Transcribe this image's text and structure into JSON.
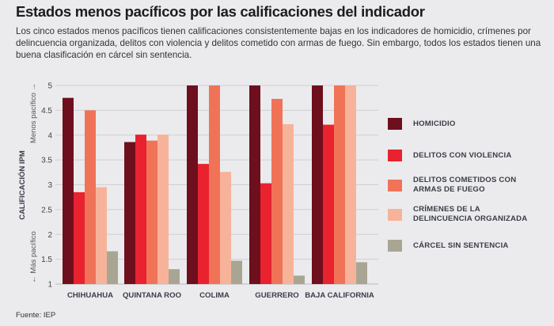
{
  "header": {
    "title": "Estados menos pacíficos por las calificaciones del indicador",
    "description": "Los cinco estados menos pacíficos tienen calificaciones consistentemente bajas en los indicadores de homicidio, crímenes por delincuencia organizada, delitos con violencia y delitos cometido con armas de fuego. Sin embargo, todos los estados tienen una buena clasificación en cárcel sin sentencia."
  },
  "source": "Fuente: IEP",
  "chart_data": {
    "type": "bar",
    "title": "Estados menos pacíficos por las calificaciones del indicador",
    "ylabel": "CALIFICACIÓN IPM",
    "ylabel_top": "Menos pacífico →",
    "ylabel_bottom": "← Más pacífico",
    "ylim": [
      1,
      5
    ],
    "yticks": [
      "1",
      "1.5",
      "2",
      "2.5",
      "3",
      "3.5",
      "4",
      "4.5",
      "5"
    ],
    "grid": true,
    "legend_position": "right",
    "categories": [
      "CHIHUAHUA",
      "QUINTANA ROO",
      "COLIMA",
      "GUERRERO",
      "BAJA CALIFORNIA"
    ],
    "series": [
      {
        "name": "HOMICIDIO",
        "color": "#6e0f1e",
        "values": [
          4.75,
          3.86,
          5.0,
          5.0,
          5.0
        ]
      },
      {
        "name": "DELITOS CON VIOLENCIA",
        "color": "#e8222e",
        "values": [
          2.85,
          4.01,
          3.42,
          3.03,
          4.21
        ]
      },
      {
        "name": "DELITOS COMETIDOS CON ARMAS DE FUEGO",
        "color": "#f07358",
        "values": [
          4.5,
          3.89,
          5.0,
          4.73,
          5.0
        ]
      },
      {
        "name": "CRÍMENES DE LA DELINCUENCIA ORGANIZADA",
        "color": "#f7b39a",
        "values": [
          2.95,
          4.01,
          3.26,
          4.22,
          5.0
        ]
      },
      {
        "name": "CÁRCEL SIN SENTENCIA",
        "color": "#a8a693",
        "values": [
          1.66,
          1.3,
          1.47,
          1.17,
          1.44
        ]
      }
    ]
  },
  "legend": {
    "items": [
      {
        "line1": "HOMICIDIO",
        "line2": ""
      },
      {
        "line1": "DELITOS CON VIOLENCIA",
        "line2": ""
      },
      {
        "line1": "DELITOS COMETIDOS CON",
        "line2": "ARMAS DE FUEGO"
      },
      {
        "line1": "CRÍMENES DE LA",
        "line2": "DELINCUENCIA ORGANIZADA"
      },
      {
        "line1": "CÁRCEL SIN SENTENCIA",
        "line2": ""
      }
    ]
  }
}
